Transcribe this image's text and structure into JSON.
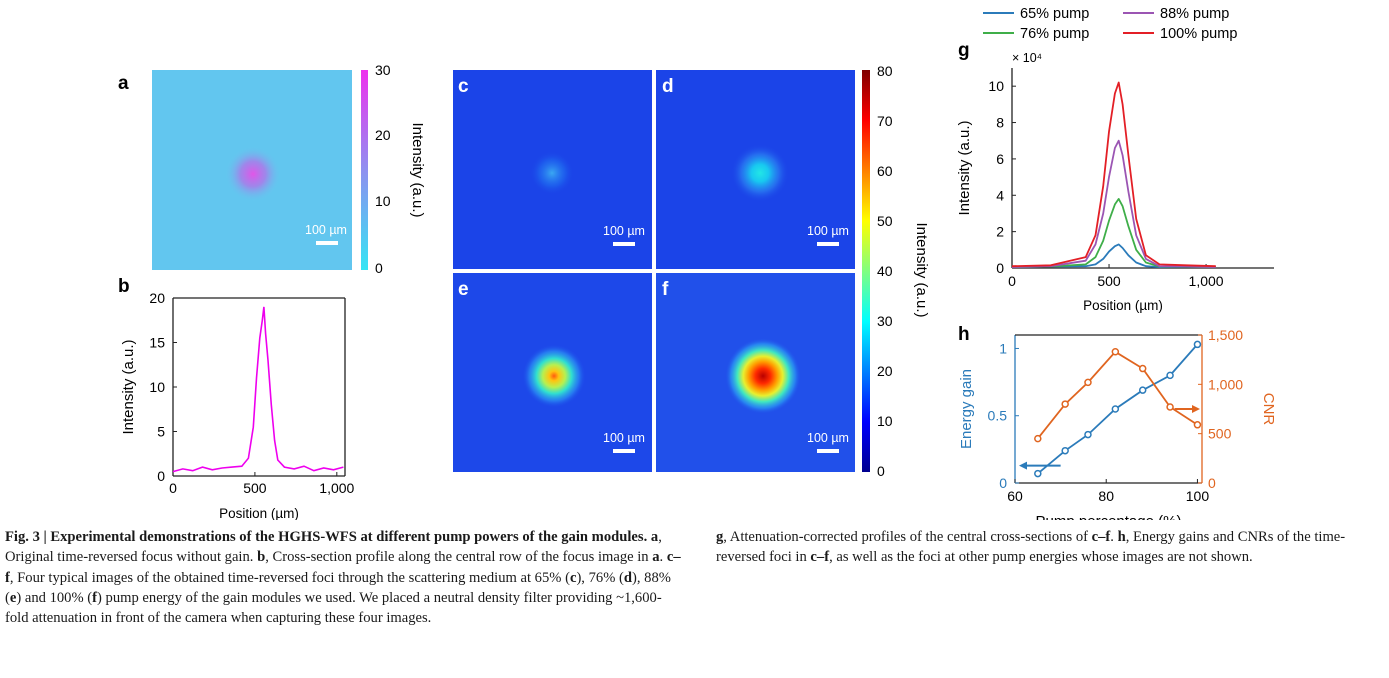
{
  "panels": {
    "a": "a",
    "b": "b",
    "c": "c",
    "d": "d",
    "e": "e",
    "f": "f",
    "g": "g",
    "h": "h"
  },
  "scale_bar": "100 µm",
  "colorbar_a": {
    "label": "Intensity (a.u.)",
    "ticks": [
      "0",
      "10",
      "20",
      "30"
    ],
    "colors": [
      "#34e5f4",
      "#e840e8"
    ]
  },
  "colorbar_cf": {
    "label": "Intensity (a.u.)",
    "ticks": [
      "0",
      "10",
      "20",
      "30",
      "40",
      "50",
      "60",
      "70",
      "80"
    ],
    "colormap": "jet"
  },
  "legend": {
    "p65": "65% pump",
    "p76": "76% pump",
    "p88": "88% pump",
    "p100": "100% pump",
    "colors": {
      "p65": "#2b7bba",
      "p76": "#3fae49",
      "p88": "#9b55b3",
      "p100": "#e31f26"
    }
  },
  "chart_data": [
    {
      "panel": "b",
      "type": "line",
      "xlabel": "Position (µm)",
      "ylabel": "Intensity (a.u.)",
      "xlim": [
        0,
        1050
      ],
      "ylim": [
        0,
        20
      ],
      "xticks": [
        "0",
        "500",
        "1,000"
      ],
      "yticks": [
        "0",
        "5",
        "10",
        "15",
        "20"
      ],
      "color": "#ee00ee",
      "series": [
        {
          "x": [
            0,
            60,
            120,
            180,
            240,
            300,
            360,
            420,
            460,
            490,
            510,
            530,
            545,
            555,
            565,
            580,
            600,
            620,
            640,
            680,
            740,
            800,
            860,
            920,
            980,
            1040
          ],
          "values": [
            0.5,
            0.8,
            0.6,
            1.0,
            0.7,
            0.9,
            1.0,
            1.1,
            2.0,
            5.5,
            11.0,
            15.5,
            17.5,
            19.0,
            16.0,
            13.0,
            8.0,
            4.0,
            1.8,
            1.0,
            0.8,
            1.1,
            0.6,
            0.9,
            0.7,
            1.0
          ]
        }
      ]
    },
    {
      "panel": "g",
      "type": "line",
      "xlabel": "Position (µm)",
      "ylabel": "Intensity (a.u.)",
      "y_multiplier": "× 10⁴",
      "xlim": [
        0,
        1350
      ],
      "ylim": [
        0,
        11
      ],
      "xticks": [
        "0",
        "500",
        "1,000"
      ],
      "yticks": [
        "0",
        "2",
        "4",
        "6",
        "8",
        "10"
      ],
      "x": [
        0,
        200,
        380,
        430,
        470,
        500,
        530,
        550,
        570,
        600,
        640,
        690,
        760,
        900,
        1050
      ],
      "series": [
        {
          "name": "65% pump",
          "values": [
            0.05,
            0.08,
            0.1,
            0.2,
            0.5,
            0.9,
            1.2,
            1.3,
            1.1,
            0.7,
            0.3,
            0.1,
            0.05,
            0.06,
            0.05
          ]
        },
        {
          "name": "76% pump",
          "values": [
            0.05,
            0.08,
            0.2,
            0.6,
            1.5,
            2.6,
            3.5,
            3.8,
            3.4,
            2.3,
            1.0,
            0.3,
            0.08,
            0.07,
            0.05
          ]
        },
        {
          "name": "88% pump",
          "values": [
            0.05,
            0.1,
            0.4,
            1.3,
            3.0,
            5.0,
            6.6,
            7.0,
            6.2,
            4.2,
            1.8,
            0.5,
            0.1,
            0.08,
            0.05
          ]
        },
        {
          "name": "100% pump",
          "values": [
            0.1,
            0.15,
            0.6,
            1.8,
            4.5,
            7.5,
            9.6,
            10.2,
            9.0,
            6.2,
            2.7,
            0.7,
            0.2,
            0.15,
            0.1
          ]
        }
      ]
    },
    {
      "panel": "h",
      "type": "line",
      "xlabel": "Pump percentage (%)",
      "ylabel": "Energy gain",
      "y2label": "CNR",
      "xlim": [
        60,
        101
      ],
      "ylim": [
        0,
        1.1
      ],
      "y2lim": [
        0,
        1500
      ],
      "xticks": [
        "60",
        "80",
        "100"
      ],
      "yticks": [
        "0",
        "0.5",
        "1"
      ],
      "y2ticks": [
        "0",
        "500",
        "1,000",
        "1,500"
      ],
      "x": [
        65,
        71,
        76,
        82,
        88,
        94,
        100
      ],
      "series": [
        {
          "name": "Energy gain",
          "axis": "left",
          "color": "#2b7bba",
          "values": [
            0.07,
            0.24,
            0.36,
            0.55,
            0.69,
            0.8,
            1.03
          ]
        },
        {
          "name": "CNR",
          "axis": "right",
          "color": "#e06520",
          "values": [
            450,
            800,
            1020,
            1330,
            1160,
            770,
            590
          ]
        }
      ]
    }
  ],
  "caption": {
    "fig_label": "Fig. 3 | Experimental demonstrations of the HGHS-WFS at different pump powers of the gain modules.",
    "a_ref": "a",
    "a_text": ", Original time-reversed focus without gain.",
    "b_ref": "b",
    "b_text": ", Cross-section profile along the central row of the focus image in ",
    "b_ref2": "a",
    "b_end": ".",
    "cf_ref": "c–f",
    "cf_text": ", Four typical images of the obtained time-reversed foci through the scattering medium at 65% (",
    "c": "c",
    "t76": "), 76% (",
    "d": "d",
    "t88": "), 88% (",
    "e": "e",
    "t100": ") and 100% (",
    "f": "f",
    "cf_end": ") pump energy of the gain modules we used. We placed a neutral density filter providing ~1,600-fold attenuation in front of the camera when capturing these four images. ",
    "g_ref": "g",
    "g_text": ", Attenuation-corrected profiles of the central cross-sections of ",
    "g_ref2": "c–f",
    "g_end": ". ",
    "h_ref": "h",
    "h_text": ", Energy gains and CNRs of the time-reversed foci in ",
    "h_ref2": "c–f",
    "h_end": ", as well as the foci at other pump energies whose images are not shown."
  }
}
